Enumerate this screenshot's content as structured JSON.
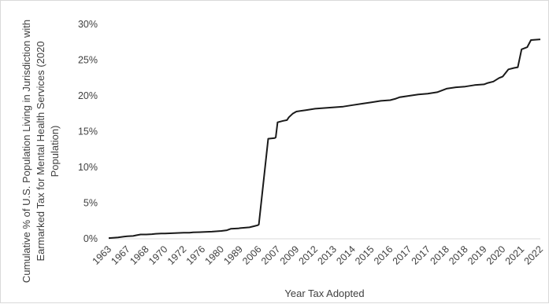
{
  "chart_data": {
    "type": "line",
    "title": "",
    "xlabel": "Year Tax Adopted",
    "ylabel_lines": [
      "Cumulative % of U.S. Population Living in Jurisdiction with",
      "Earmarked Tax for Mental Health Services (2020",
      "Population)"
    ],
    "ylim": [
      0,
      30
    ],
    "yticks": [
      0,
      5,
      10,
      15,
      20,
      25,
      30
    ],
    "ytick_labels": [
      "0%",
      "5%",
      "10%",
      "15%",
      "20%",
      "25%",
      "30%"
    ],
    "grid": false,
    "x_tick_labels": [
      "1963",
      "1967",
      "1968",
      "1970",
      "1972",
      "1976",
      "1980",
      "1989",
      "2006",
      "2007",
      "2009",
      "2012",
      "2013",
      "2014",
      "2015",
      "2016",
      "2017",
      "2017",
      "2018",
      "2018",
      "2019",
      "2020",
      "2021",
      "2022"
    ],
    "series": [
      {
        "color": "#1a1a1a",
        "x": [
          0,
          0.3,
          0.5,
          0.8,
          1.0,
          1.3,
          1.5,
          1.7,
          2.0,
          2.3,
          2.5,
          2.8,
          3.0,
          3.5,
          4.0,
          4.3,
          4.5,
          5.0,
          5.5,
          6.0,
          6.3,
          6.5,
          6.9,
          7.0,
          7.5,
          7.8,
          7.95,
          8.0,
          8.5,
          8.85,
          8.9,
          9.0,
          9.3,
          9.5,
          9.6,
          9.8,
          10.0,
          10.5,
          11.0,
          11.5,
          12.0,
          12.5,
          13.0,
          13.5,
          14.0,
          14.5,
          15.0,
          15.3,
          15.5,
          16.0,
          16.5,
          17.0,
          17.5,
          18.0,
          18.5,
          19.0,
          19.5,
          20.0,
          20.2,
          20.5,
          20.8,
          21.0,
          21.3,
          21.6,
          21.8,
          22.0,
          22.3,
          22.5,
          23.0
        ],
        "y": [
          0.1,
          0.15,
          0.2,
          0.3,
          0.35,
          0.4,
          0.5,
          0.6,
          0.6,
          0.65,
          0.7,
          0.75,
          0.75,
          0.8,
          0.85,
          0.85,
          0.9,
          0.95,
          1.0,
          1.1,
          1.2,
          1.4,
          1.45,
          1.5,
          1.6,
          1.8,
          1.9,
          2.0,
          14.0,
          14.1,
          14.2,
          16.3,
          16.5,
          16.6,
          17.0,
          17.5,
          17.8,
          18.0,
          18.2,
          18.3,
          18.4,
          18.5,
          18.7,
          18.9,
          19.1,
          19.3,
          19.4,
          19.6,
          19.8,
          20.0,
          20.2,
          20.3,
          20.5,
          21.0,
          21.2,
          21.3,
          21.5,
          21.6,
          21.8,
          22.0,
          22.5,
          22.7,
          23.7,
          23.9,
          24.0,
          26.5,
          26.8,
          27.8,
          27.9
        ]
      }
    ]
  }
}
